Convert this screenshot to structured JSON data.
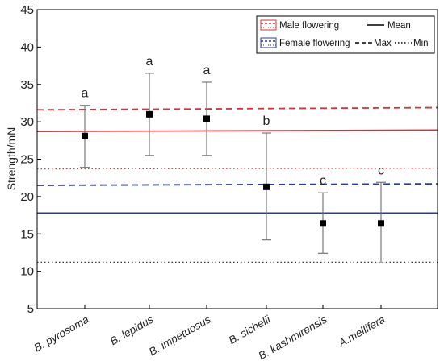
{
  "chart_data": {
    "type": "scatter",
    "title": "",
    "xlabel": "",
    "ylabel": "Strength/mN",
    "ylim": [
      5,
      45
    ],
    "yticks": [
      5,
      10,
      15,
      20,
      25,
      30,
      35,
      40,
      45
    ],
    "grid": false,
    "legend_position": "top-right",
    "categories": [
      "B. pyrosoma",
      "B. lepidus",
      "B. impetuosus",
      "B. sichelii",
      "B. kashmirensis",
      "A.mellifera"
    ],
    "points": [
      {
        "category": "B. pyrosoma",
        "mean": 28.1,
        "upper": 32.2,
        "lower": 23.9,
        "group": "a"
      },
      {
        "category": "B. lepidus",
        "mean": 31.0,
        "upper": 36.5,
        "lower": 25.5,
        "group": "a"
      },
      {
        "category": "B. impetuosus",
        "mean": 30.4,
        "upper": 35.3,
        "lower": 25.5,
        "group": "a"
      },
      {
        "category": "B. sichelii",
        "mean": 21.3,
        "upper": 28.5,
        "lower": 14.2,
        "group": "b"
      },
      {
        "category": "B. kashmirensis",
        "mean": 16.4,
        "upper": 20.5,
        "lower": 12.4,
        "group": "c"
      },
      {
        "category": "A.mellifera",
        "mean": 16.4,
        "upper": 21.9,
        "lower": 11.1,
        "group": "c"
      }
    ],
    "reference_lines": [
      {
        "series": "Male flowering",
        "kind": "Mean",
        "start": 28.7,
        "end": 28.9,
        "color": "#d1343b",
        "style": "solid"
      },
      {
        "series": "Male flowering",
        "kind": "Max",
        "start": 31.6,
        "end": 31.9,
        "color": "#d1343b",
        "style": "dashed"
      },
      {
        "series": "Male flowering",
        "kind": "Min",
        "start": 23.7,
        "end": 23.8,
        "color": "#d1343b",
        "style": "dotted"
      },
      {
        "series": "Female flowering",
        "kind": "Mean",
        "start": 17.8,
        "end": 17.8,
        "color": "#2e3b8c",
        "style": "solid"
      },
      {
        "series": "Female flowering",
        "kind": "Max",
        "start": 21.5,
        "end": 21.7,
        "color": "#2e3b8c",
        "style": "dashed"
      },
      {
        "series": "Female flowering",
        "kind": "Min",
        "start": 11.2,
        "end": 11.2,
        "color": "#333333",
        "style": "dotted"
      }
    ],
    "legend": {
      "male": "Male flowering",
      "female": "Female flowering",
      "mean": "Mean",
      "max": "Max",
      "min": "Min"
    },
    "colors": {
      "male": "#d1343b",
      "female": "#2e3b8c",
      "marker": "#000000",
      "errorbar": "#777777"
    }
  }
}
